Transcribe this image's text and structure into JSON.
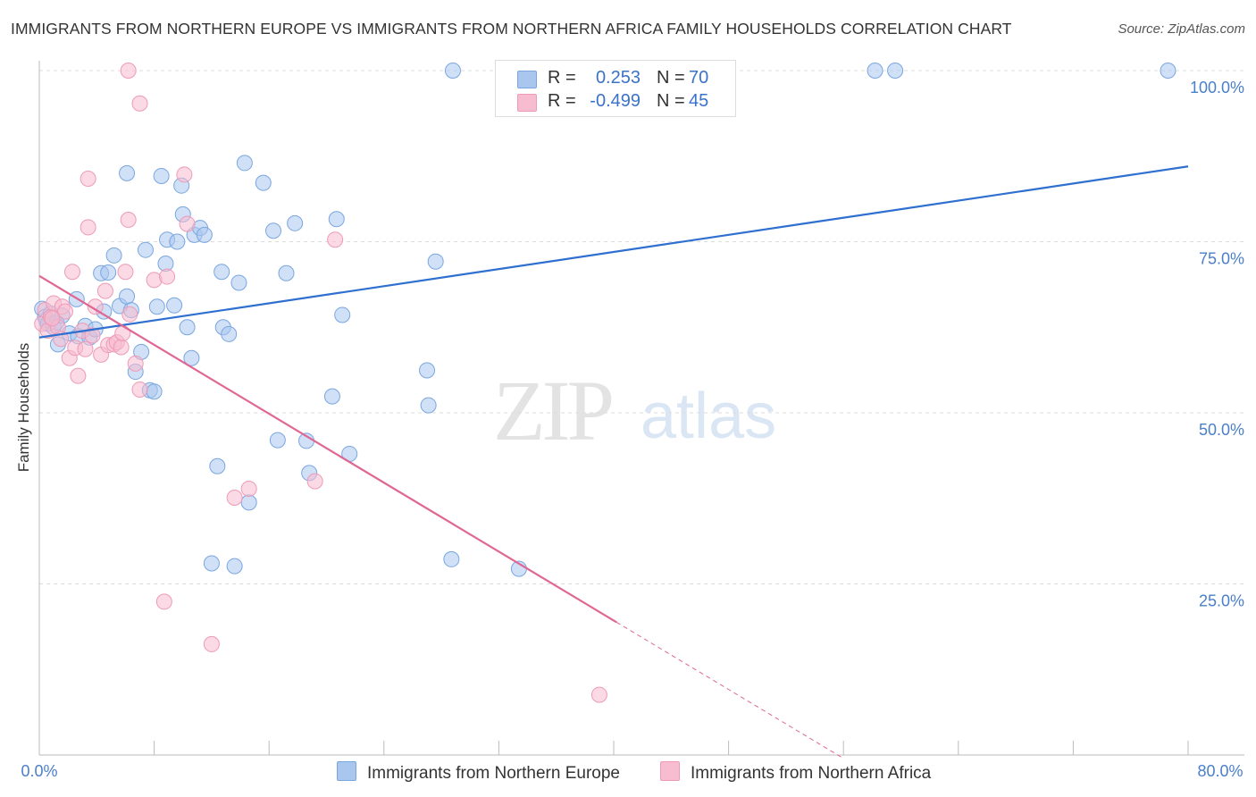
{
  "header": {
    "title": "IMMIGRANTS FROM NORTHERN EUROPE VS IMMIGRANTS FROM NORTHERN AFRICA FAMILY HOUSEHOLDS CORRELATION CHART",
    "source": "Source: ZipAtlas.com"
  },
  "watermark": {
    "zip": "ZIP",
    "atlas": "atlas"
  },
  "stats": {
    "r_label": "R =",
    "n_label": "N =",
    "blue": {
      "r": "0.253",
      "n": "70",
      "color": "#a9c6ef"
    },
    "pink": {
      "r": "-0.499",
      "n": "45",
      "color": "#f7bcd0"
    }
  },
  "legend": {
    "blue_label": "Immigrants from Northern Europe",
    "pink_label": "Immigrants from Northern Africa"
  },
  "colors": {
    "blue_fill": "#a9c6ef",
    "blue_stroke": "#7aa6e0",
    "blue_line": "#2e6fd0",
    "pink_fill": "#f7bcd0",
    "pink_stroke": "#ee9ab7",
    "pink_line": "#e06693",
    "grid": "#dddddd",
    "axis_label": "#4a7fc9"
  },
  "chart_data": {
    "type": "scatter",
    "title": "IMMIGRANTS FROM NORTHERN EUROPE VS IMMIGRANTS FROM NORTHERN AFRICA FAMILY HOUSEHOLDS CORRELATION CHART",
    "xlabel": "",
    "ylabel": "Family Households",
    "xlim": [
      0,
      80
    ],
    "ylim": [
      0,
      100
    ],
    "x_tick_labels": [
      "0.0%",
      "80.0%"
    ],
    "y_tick_values": [
      25,
      50,
      75,
      100
    ],
    "y_tick_labels": [
      "25.0%",
      "50.0%",
      "75.0%",
      "100.0%"
    ],
    "grid": true,
    "legend_position": "bottom",
    "series": [
      {
        "name": "Immigrants from Northern Europe",
        "r": 0.253,
        "n": 70,
        "trend": {
          "x": [
            0,
            80
          ],
          "y": [
            61.0,
            86.0
          ]
        },
        "points": [
          [
            0.2,
            65.2
          ],
          [
            0.4,
            64.0
          ],
          [
            0.5,
            63.5
          ],
          [
            0.6,
            63.0
          ],
          [
            0.8,
            64.5
          ],
          [
            1.0,
            62.5
          ],
          [
            1.2,
            63.2
          ],
          [
            1.3,
            60.0
          ],
          [
            2.1,
            61.6
          ],
          [
            2.6,
            66.6
          ],
          [
            2.7,
            61.2
          ],
          [
            3.2,
            62.7
          ],
          [
            3.5,
            61.0
          ],
          [
            3.9,
            62.2
          ],
          [
            4.3,
            70.4
          ],
          [
            4.5,
            64.8
          ],
          [
            4.8,
            70.5
          ],
          [
            5.2,
            73.0
          ],
          [
            5.6,
            65.6
          ],
          [
            6.1,
            67.0
          ],
          [
            6.4,
            65.0
          ],
          [
            6.7,
            56.0
          ],
          [
            7.1,
            58.9
          ],
          [
            7.4,
            73.8
          ],
          [
            7.7,
            53.3
          ],
          [
            8.0,
            53.1
          ],
          [
            8.2,
            65.5
          ],
          [
            8.5,
            84.6
          ],
          [
            8.8,
            71.8
          ],
          [
            8.9,
            75.3
          ],
          [
            9.4,
            65.7
          ],
          [
            9.6,
            75.0
          ],
          [
            9.9,
            83.2
          ],
          [
            10.0,
            79.0
          ],
          [
            10.3,
            62.5
          ],
          [
            10.6,
            58.0
          ],
          [
            10.8,
            76.0
          ],
          [
            11.2,
            77.0
          ],
          [
            11.5,
            76.0
          ],
          [
            12.0,
            28.0
          ],
          [
            12.4,
            42.2
          ],
          [
            12.7,
            70.6
          ],
          [
            12.8,
            62.5
          ],
          [
            13.2,
            61.5
          ],
          [
            13.6,
            27.6
          ],
          [
            13.9,
            69.0
          ],
          [
            14.3,
            86.5
          ],
          [
            14.6,
            36.9
          ],
          [
            15.6,
            83.6
          ],
          [
            16.3,
            76.6
          ],
          [
            16.6,
            46.0
          ],
          [
            17.2,
            70.4
          ],
          [
            17.8,
            77.7
          ],
          [
            18.6,
            45.9
          ],
          [
            18.8,
            41.2
          ],
          [
            20.4,
            52.4
          ],
          [
            20.7,
            78.3
          ],
          [
            21.1,
            64.3
          ],
          [
            21.6,
            44.0
          ],
          [
            27.0,
            56.2
          ],
          [
            27.1,
            51.1
          ],
          [
            27.6,
            72.1
          ],
          [
            28.7,
            28.6
          ],
          [
            33.4,
            27.2
          ],
          [
            6.1,
            85.0
          ],
          [
            28.8,
            100.0
          ],
          [
            58.2,
            100.0
          ],
          [
            59.6,
            100.0
          ],
          [
            78.6,
            100.0
          ],
          [
            1.6,
            64.2
          ]
        ]
      },
      {
        "name": "Immigrants from Northern Africa",
        "r": -0.499,
        "n": 45,
        "trend": {
          "x": [
            0,
            40.2
          ],
          "y": [
            70.0,
            19.4
          ]
        },
        "trend_extension": {
          "x": [
            40.2,
            56.0
          ],
          "y": [
            19.4,
            -0.5
          ]
        },
        "points": [
          [
            0.2,
            63.0
          ],
          [
            0.4,
            65.0
          ],
          [
            0.6,
            62.0
          ],
          [
            0.8,
            64.0
          ],
          [
            1.0,
            66.0
          ],
          [
            1.3,
            62.5
          ],
          [
            1.6,
            65.5
          ],
          [
            1.8,
            64.8
          ],
          [
            2.1,
            58.0
          ],
          [
            2.3,
            70.6
          ],
          [
            2.5,
            59.5
          ],
          [
            2.7,
            55.4
          ],
          [
            3.0,
            62.0
          ],
          [
            3.2,
            59.3
          ],
          [
            3.4,
            84.2
          ],
          [
            3.4,
            77.1
          ],
          [
            3.7,
            61.3
          ],
          [
            3.9,
            65.5
          ],
          [
            4.3,
            58.5
          ],
          [
            4.6,
            67.8
          ],
          [
            4.8,
            59.9
          ],
          [
            5.2,
            60.0
          ],
          [
            5.4,
            60.3
          ],
          [
            5.7,
            59.6
          ],
          [
            5.8,
            61.6
          ],
          [
            6.0,
            70.6
          ],
          [
            6.2,
            78.2
          ],
          [
            6.3,
            64.4
          ],
          [
            6.7,
            57.2
          ],
          [
            7.0,
            53.4
          ],
          [
            6.2,
            100.0
          ],
          [
            7.0,
            95.2
          ],
          [
            8.0,
            69.4
          ],
          [
            8.7,
            22.4
          ],
          [
            8.9,
            69.9
          ],
          [
            10.1,
            84.8
          ],
          [
            10.3,
            77.6
          ],
          [
            12.0,
            16.2
          ],
          [
            13.6,
            37.6
          ],
          [
            14.6,
            38.9
          ],
          [
            19.2,
            40.0
          ],
          [
            20.6,
            75.3
          ],
          [
            39.0,
            8.8
          ],
          [
            1.5,
            60.8
          ],
          [
            0.9,
            63.8
          ]
        ]
      }
    ]
  }
}
